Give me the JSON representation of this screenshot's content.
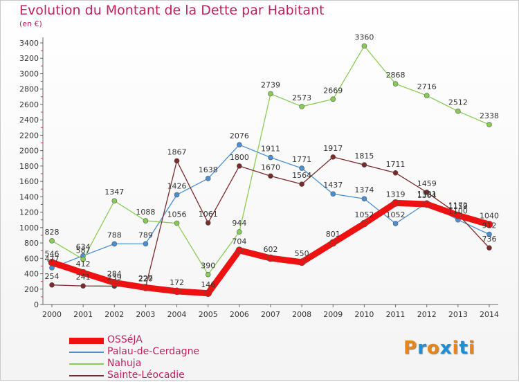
{
  "title": "Evolution du Montant de la Dette par Habitant",
  "unit": "(en €)",
  "brand": {
    "text": "Proxiti",
    "letter_colors": [
      "#e8861a",
      "#1e8fd4",
      "#e8861a",
      "#1e8fd4",
      "#e8861a",
      "#1e8fd4",
      "#e8861a"
    ]
  },
  "chart_data": {
    "type": "line",
    "title": "Evolution du Montant de la Dette par Habitant",
    "ylabel": "(en €)",
    "xlabel": "",
    "x": [
      "2000",
      "2001",
      "2002",
      "2003",
      "2004",
      "2005",
      "2006",
      "2007",
      "2008",
      "2009",
      "2010",
      "2011",
      "2012",
      "2013",
      "2014"
    ],
    "ylim": [
      0,
      3400
    ],
    "yticks": [
      0,
      200,
      400,
      600,
      800,
      1000,
      1200,
      1400,
      1600,
      1800,
      2000,
      2200,
      2400,
      2600,
      2800,
      3000,
      3200,
      3400
    ],
    "grid": false,
    "legend_position": "bottom-left",
    "series": [
      {
        "name": "OSSéJA",
        "color": "#ee1111",
        "thick": true,
        "values": [
          546,
          412,
          284,
          220,
          172,
          146,
          704,
          602,
          550,
          801,
          1052,
          1319,
          1304,
          1159,
          1040
        ],
        "labels": [
          "546",
          "412",
          "284",
          "220",
          "172",
          "146",
          "704",
          "602",
          "550",
          "801",
          "1052",
          "1319",
          "1304",
          "1159",
          "1040"
        ]
      },
      {
        "name": "Palau-de-Cerdagne",
        "color": "#4a90d0",
        "thick": false,
        "values": [
          477,
          634,
          788,
          789,
          1426,
          1638,
          2076,
          1911,
          1771,
          1437,
          1374,
          1052,
          1321,
          1100,
          912
        ],
        "labels": [
          "477",
          "634",
          "788",
          "789",
          "1426",
          "1638",
          "2076",
          "1911",
          "1771",
          "1437",
          "1374",
          "1052",
          "1321",
          "1100",
          "912"
        ]
      },
      {
        "name": "Nahuja",
        "color": "#88cc55",
        "thick": false,
        "values": [
          828,
          587,
          1347,
          1088,
          1056,
          390,
          944,
          2739,
          2573,
          2669,
          3360,
          2868,
          2716,
          2512,
          2338
        ],
        "labels": [
          "828",
          "587",
          "1347",
          "1088",
          "1056",
          "390",
          "944",
          "2739",
          "2573",
          "2669",
          "3360",
          "2868",
          "2716",
          "2512",
          "2338"
        ]
      },
      {
        "name": "Sainte-Léocadie",
        "color": "#7a2a2a",
        "thick": false,
        "values": [
          254,
          241,
          239,
          227,
          1867,
          1061,
          1800,
          1670,
          1564,
          1917,
          1815,
          1711,
          1459,
          1172,
          736
        ],
        "labels": [
          "254",
          "241",
          "239",
          "227",
          "1867",
          "1061",
          "1800",
          "1670",
          "1564",
          "1917",
          "1815",
          "1711",
          "1459",
          "1172",
          "736"
        ]
      }
    ]
  }
}
